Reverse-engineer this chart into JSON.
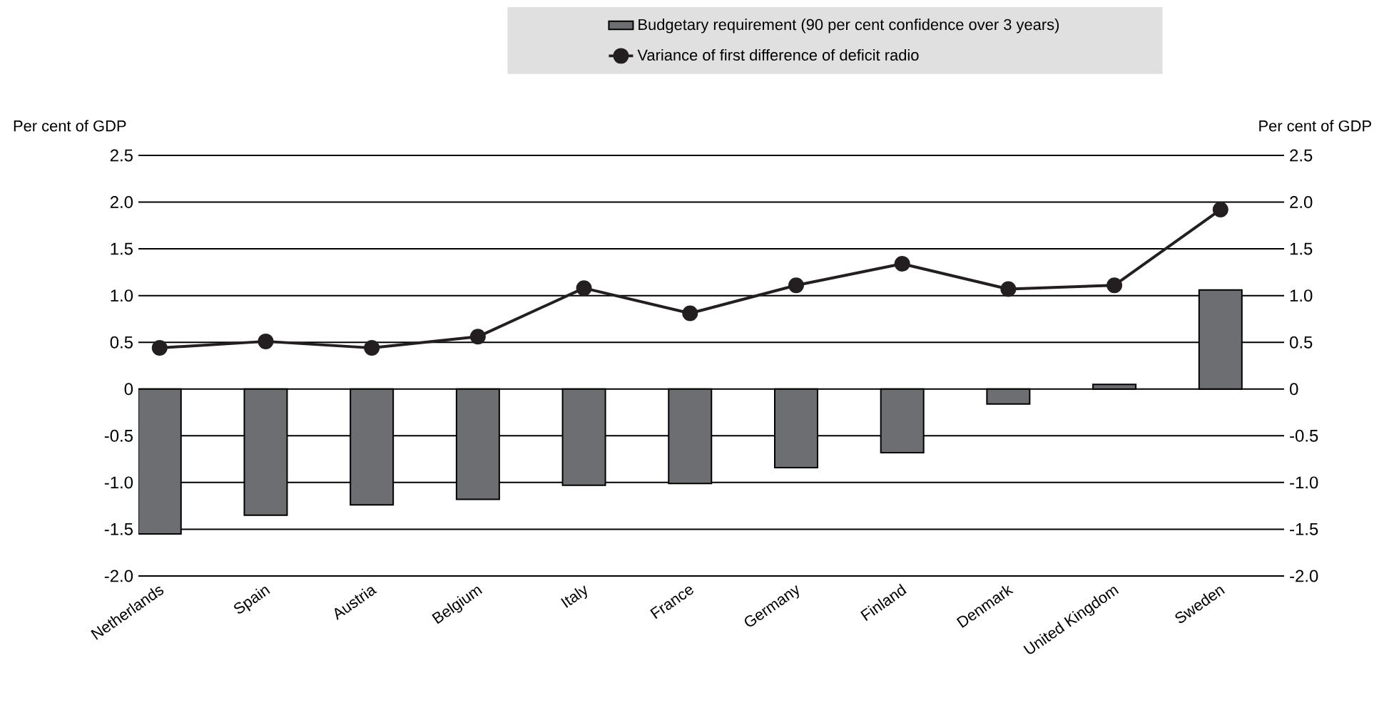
{
  "chart_data": {
    "type": "bar",
    "ylabel": "Per cent of GDP",
    "y2label": "Per cent of GDP",
    "categories": [
      "Netherlands",
      "Spain",
      "Austria",
      "Belgium",
      "Italy",
      "France",
      "Germany",
      "Finland",
      "Denmark",
      "United Kingdom",
      "Sweden"
    ],
    "series": [
      {
        "name": "Budgetary requirement (90 per cent confidence over 3 years)",
        "color": "#6d6e71",
        "values": [
          -1.55,
          -1.35,
          -1.24,
          -1.18,
          -1.03,
          -1.01,
          -0.84,
          -0.68,
          -0.16,
          0.05,
          1.06
        ]
      },
      {
        "name": "Variance of first difference of deficit radio",
        "type": "line",
        "color": "#231f20",
        "marker": "circle",
        "values": [
          0.44,
          0.51,
          0.44,
          0.56,
          1.08,
          0.81,
          1.11,
          1.34,
          1.07,
          1.11,
          1.92
        ]
      }
    ],
    "ylim": [
      -2.0,
      2.5
    ],
    "yticks": [
      {
        "value": -2,
        "label": "-2.0"
      },
      -1.5,
      {
        "value": -1,
        "label": "-1.0"
      },
      -0.5,
      0,
      0.5,
      {
        "value": 1,
        "label": "1.0"
      },
      1.5,
      {
        "value": 2,
        "label": "2.0"
      },
      2.5
    ],
    "y2lim": [
      -2.0,
      2.5
    ],
    "y2ticks": [
      {
        "value": -2,
        "label": "-2.0"
      },
      -1.5,
      {
        "value": -1,
        "label": "-1.0"
      },
      -0.5,
      0,
      0.5,
      {
        "value": 1,
        "label": "1.0"
      },
      1.5,
      {
        "value": 2,
        "label": "2.0"
      },
      2.5
    ],
    "grid": "y",
    "legend": "top"
  }
}
